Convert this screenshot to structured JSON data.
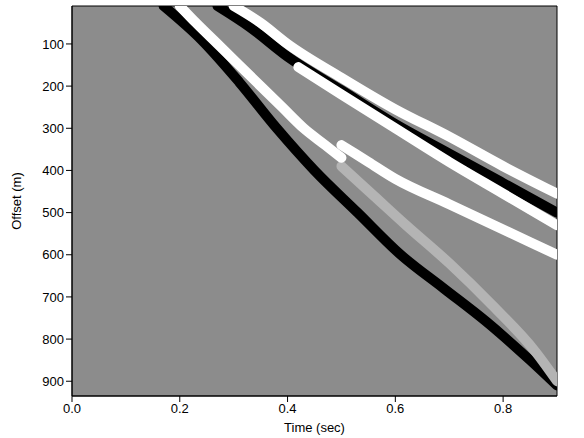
{
  "chart_data": {
    "type": "line",
    "x_label": "Time (sec)",
    "y_label": "Offset (m)",
    "xlim": [
      0,
      0.9
    ],
    "xticks": [
      {
        "value": 0,
        "label": "0.0"
      },
      0.2,
      0.4,
      0.6,
      0.8
    ],
    "ylim": [
      935,
      10
    ],
    "yticks": [
      100,
      200,
      300,
      400,
      500,
      600,
      700,
      800,
      900
    ],
    "background": "#8c8c8c",
    "series": [
      {
        "color": "#000000",
        "x": [
          0.17,
          0.24,
          0.31,
          0.38,
          0.45,
          0.53,
          0.61,
          0.69,
          0.77,
          0.85,
          0.9
        ],
        "values": [
          10,
          90,
          190,
          300,
          400,
          500,
          600,
          680,
          760,
          850,
          910
        ]
      },
      {
        "color": "#b4b4b4",
        "x": [
          0.5,
          0.56,
          0.62,
          0.7,
          0.78,
          0.86,
          0.9
        ],
        "values": [
          390,
          460,
          530,
          620,
          720,
          830,
          900
        ]
      },
      {
        "color": "#ffffff",
        "x": [
          0.2,
          0.23,
          0.27,
          0.31,
          0.35,
          0.39,
          0.43,
          0.47,
          0.5
        ],
        "values": [
          10,
          50,
          100,
          150,
          200,
          250,
          300,
          340,
          370
        ]
      },
      {
        "color": "#000000",
        "x": [
          0.27,
          0.33,
          0.4,
          0.5,
          0.6,
          0.7,
          0.8,
          0.9
        ],
        "values": [
          10,
          60,
          130,
          210,
          290,
          360,
          430,
          500
        ]
      },
      {
        "color": "#ffffff",
        "x": [
          0.3,
          0.35,
          0.4,
          0.5,
          0.6,
          0.7,
          0.8,
          0.9
        ],
        "values": [
          10,
          50,
          100,
          180,
          255,
          320,
          390,
          455
        ]
      },
      {
        "color": "#ffffff",
        "x": [
          0.42,
          0.5,
          0.6,
          0.7,
          0.8,
          0.9
        ],
        "values": [
          155,
          220,
          300,
          380,
          455,
          530
        ]
      },
      {
        "color": "#ffffff",
        "x": [
          0.5,
          0.55,
          0.6,
          0.7,
          0.8,
          0.9
        ],
        "values": [
          340,
          380,
          420,
          480,
          540,
          600
        ]
      }
    ]
  }
}
